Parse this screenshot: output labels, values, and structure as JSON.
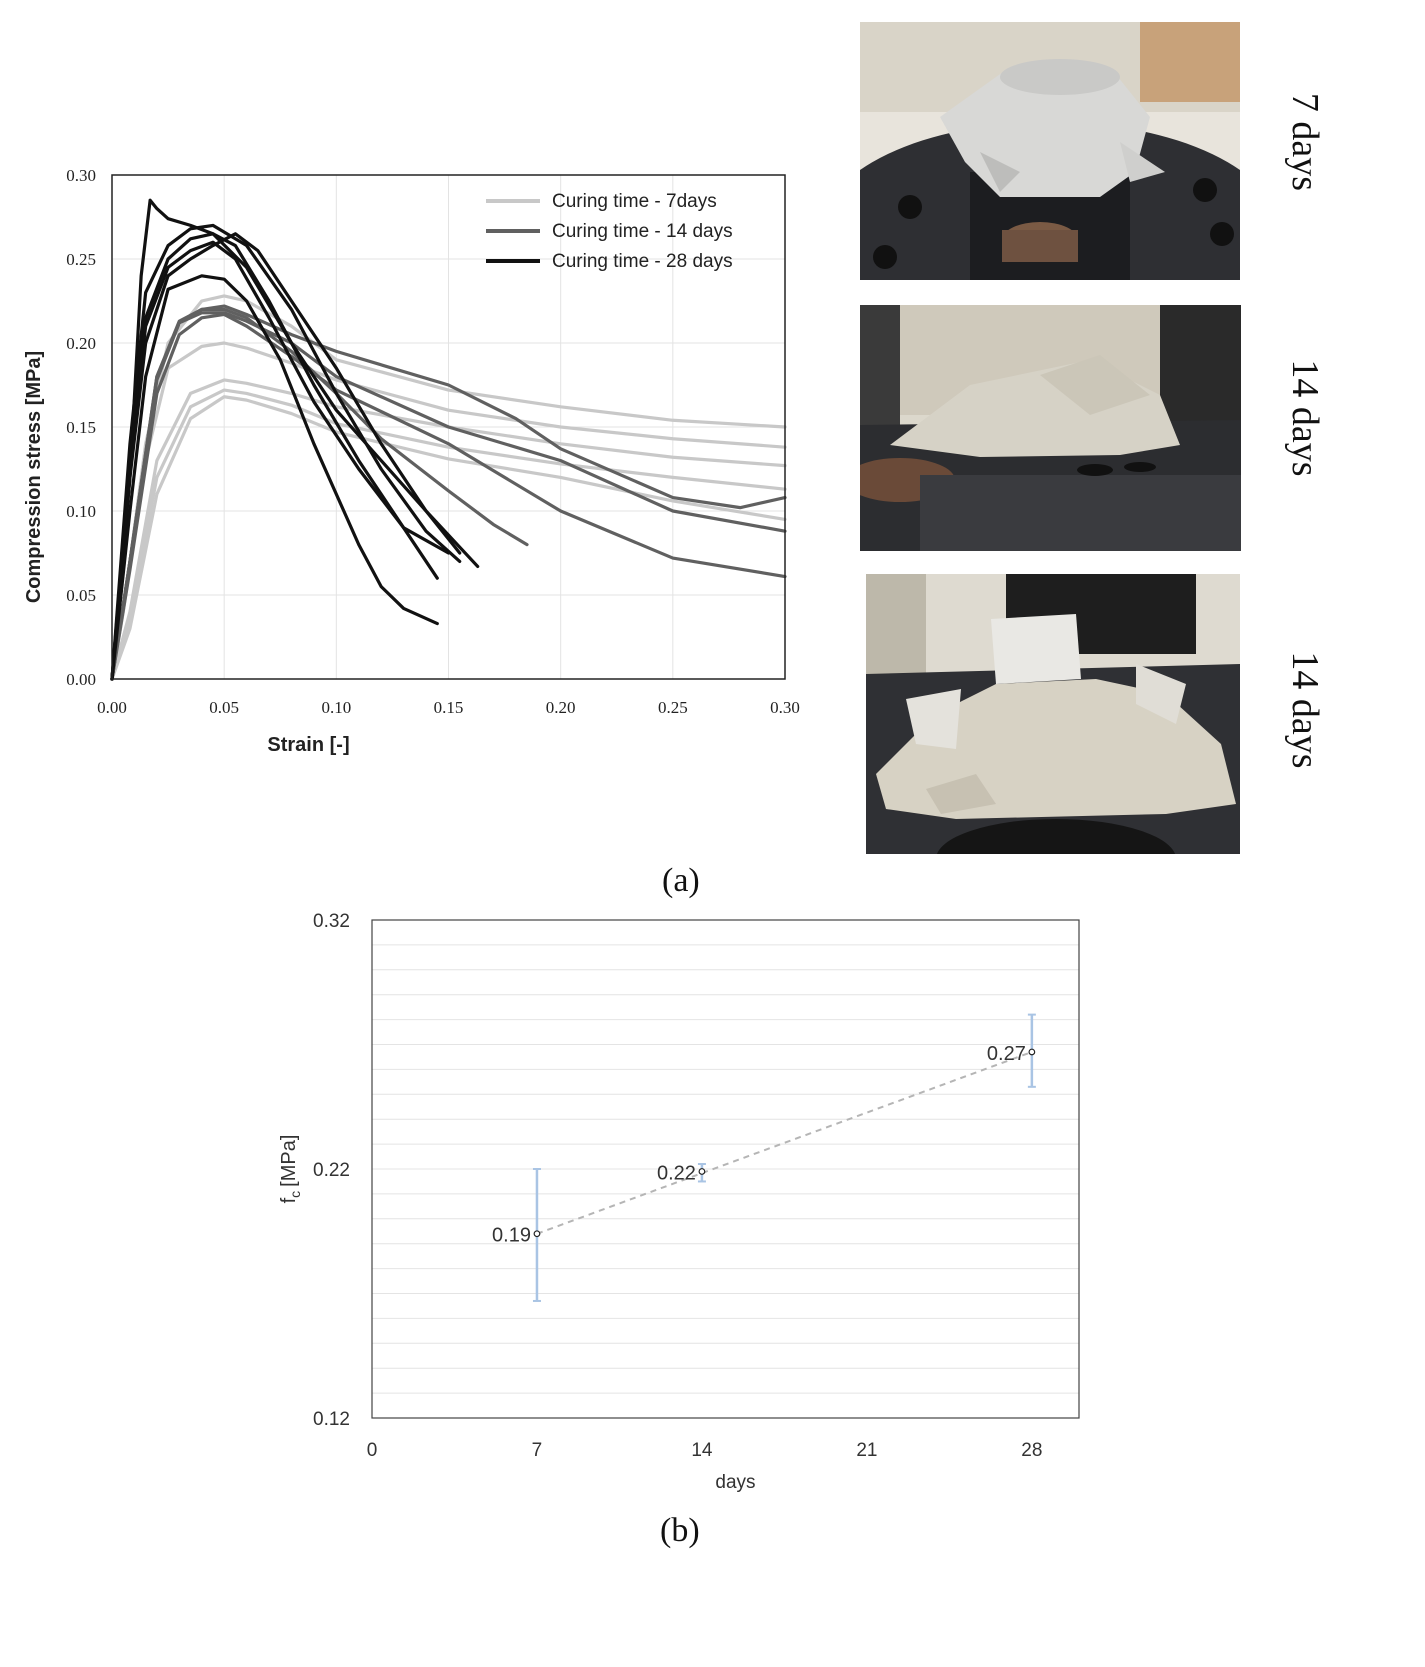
{
  "panel_a_label": "(a)",
  "panel_b_label": "(b)",
  "photos": [
    {
      "label": "7 days",
      "icon": "photo-crushed-specimen-7-days"
    },
    {
      "label": "14 days",
      "icon": "photo-crushed-specimen-14-days"
    },
    {
      "label": "14 days",
      "icon": "photo-crushed-specimen-14-days-b"
    }
  ],
  "chart_data": [
    {
      "type": "line",
      "title": "",
      "xlabel": "Strain [-]",
      "ylabel": "Compression stress [MPa]",
      "xlim": [
        0,
        0.3
      ],
      "ylim": [
        0,
        0.3
      ],
      "xticks": [
        "0.00",
        "0.05",
        "0.10",
        "0.15",
        "0.20",
        "0.25",
        "0.30"
      ],
      "yticks": [
        "0.00",
        "0.05",
        "0.10",
        "0.15",
        "0.20",
        "0.25",
        "0.30"
      ],
      "grid": true,
      "legend_position": "top-right",
      "legend": [
        {
          "label": "Curing time - 7days",
          "color": "#c8c8c8"
        },
        {
          "label": "Curing time - 14 days",
          "color": "#606060"
        },
        {
          "label": "Curing time - 28 days",
          "color": "#111111"
        }
      ],
      "series": [
        {
          "group": 0,
          "color": "#c8c8c8",
          "x": [
            0,
            0.005,
            0.015,
            0.025,
            0.04,
            0.05,
            0.06,
            0.08,
            0.1,
            0.15,
            0.2,
            0.25,
            0.3
          ],
          "y": [
            0,
            0.04,
            0.14,
            0.2,
            0.225,
            0.228,
            0.225,
            0.21,
            0.19,
            0.172,
            0.162,
            0.154,
            0.15
          ]
        },
        {
          "group": 0,
          "color": "#c8c8c8",
          "x": [
            0,
            0.005,
            0.015,
            0.025,
            0.04,
            0.05,
            0.06,
            0.08,
            0.1,
            0.15,
            0.2,
            0.25,
            0.3
          ],
          "y": [
            0,
            0.04,
            0.13,
            0.185,
            0.198,
            0.2,
            0.197,
            0.188,
            0.178,
            0.16,
            0.15,
            0.143,
            0.138
          ]
        },
        {
          "group": 0,
          "color": "#c8c8c8",
          "x": [
            0,
            0.008,
            0.02,
            0.035,
            0.05,
            0.06,
            0.08,
            0.1,
            0.15,
            0.2,
            0.25,
            0.3
          ],
          "y": [
            0,
            0.04,
            0.13,
            0.17,
            0.178,
            0.176,
            0.17,
            0.162,
            0.15,
            0.14,
            0.132,
            0.127
          ]
        },
        {
          "group": 0,
          "color": "#c8c8c8",
          "x": [
            0,
            0.008,
            0.02,
            0.035,
            0.05,
            0.06,
            0.08,
            0.1,
            0.15,
            0.2,
            0.25,
            0.3
          ],
          "y": [
            0,
            0.035,
            0.12,
            0.162,
            0.172,
            0.17,
            0.163,
            0.152,
            0.138,
            0.128,
            0.12,
            0.113
          ]
        },
        {
          "group": 0,
          "color": "#c8c8c8",
          "x": [
            0,
            0.008,
            0.02,
            0.035,
            0.05,
            0.06,
            0.08,
            0.1,
            0.15,
            0.2,
            0.25,
            0.3
          ],
          "y": [
            0,
            0.03,
            0.11,
            0.155,
            0.168,
            0.166,
            0.158,
            0.147,
            0.131,
            0.12,
            0.106,
            0.095
          ]
        },
        {
          "group": 1,
          "color": "#606060",
          "x": [
            0,
            0.008,
            0.02,
            0.03,
            0.04,
            0.05,
            0.06,
            0.08,
            0.1,
            0.15,
            0.18,
            0.2,
            0.25,
            0.28,
            0.3
          ],
          "y": [
            0,
            0.07,
            0.18,
            0.212,
            0.22,
            0.222,
            0.217,
            0.205,
            0.195,
            0.175,
            0.155,
            0.137,
            0.108,
            0.102,
            0.108
          ]
        },
        {
          "group": 1,
          "color": "#606060",
          "x": [
            0,
            0.008,
            0.02,
            0.03,
            0.04,
            0.05,
            0.06,
            0.08,
            0.1,
            0.15,
            0.2,
            0.25,
            0.3
          ],
          "y": [
            0,
            0.07,
            0.178,
            0.212,
            0.218,
            0.218,
            0.213,
            0.2,
            0.18,
            0.15,
            0.13,
            0.1,
            0.088
          ]
        },
        {
          "group": 1,
          "color": "#606060",
          "x": [
            0,
            0.008,
            0.02,
            0.03,
            0.04,
            0.05,
            0.06,
            0.08,
            0.1,
            0.15,
            0.2,
            0.25,
            0.3
          ],
          "y": [
            0,
            0.065,
            0.17,
            0.205,
            0.215,
            0.217,
            0.21,
            0.192,
            0.172,
            0.14,
            0.1,
            0.072,
            0.061
          ]
        },
        {
          "group": 1,
          "color": "#606060",
          "x": [
            0,
            0.008,
            0.02,
            0.03,
            0.04,
            0.05,
            0.06,
            0.08,
            0.1,
            0.12,
            0.15,
            0.17,
            0.185
          ],
          "y": [
            0,
            0.07,
            0.18,
            0.213,
            0.22,
            0.22,
            0.215,
            0.195,
            0.17,
            0.143,
            0.112,
            0.092,
            0.08
          ]
        },
        {
          "group": 2,
          "color": "#111111",
          "x": [
            0,
            0.008,
            0.013,
            0.017,
            0.02,
            0.025,
            0.035,
            0.045,
            0.06,
            0.08,
            0.1,
            0.12,
            0.14,
            0.163
          ],
          "y": [
            0,
            0.12,
            0.24,
            0.285,
            0.28,
            0.274,
            0.27,
            0.265,
            0.245,
            0.2,
            0.16,
            0.13,
            0.1,
            0.067
          ]
        },
        {
          "group": 2,
          "color": "#111111",
          "x": [
            0,
            0.008,
            0.015,
            0.025,
            0.035,
            0.045,
            0.06,
            0.08,
            0.1,
            0.12,
            0.14,
            0.155
          ],
          "y": [
            0,
            0.14,
            0.23,
            0.258,
            0.268,
            0.27,
            0.258,
            0.22,
            0.17,
            0.125,
            0.088,
            0.07
          ]
        },
        {
          "group": 2,
          "color": "#111111",
          "x": [
            0,
            0.008,
            0.015,
            0.025,
            0.035,
            0.045,
            0.055,
            0.07,
            0.09,
            0.11,
            0.13,
            0.145
          ],
          "y": [
            0,
            0.13,
            0.215,
            0.25,
            0.262,
            0.265,
            0.258,
            0.225,
            0.175,
            0.13,
            0.09,
            0.06
          ]
        },
        {
          "group": 2,
          "color": "#111111",
          "x": [
            0,
            0.008,
            0.015,
            0.025,
            0.035,
            0.045,
            0.055,
            0.07,
            0.09,
            0.11,
            0.13,
            0.15
          ],
          "y": [
            0,
            0.13,
            0.21,
            0.245,
            0.255,
            0.26,
            0.25,
            0.215,
            0.165,
            0.125,
            0.09,
            0.075
          ]
        },
        {
          "group": 2,
          "color": "#111111",
          "x": [
            0,
            0.008,
            0.015,
            0.025,
            0.035,
            0.045,
            0.055,
            0.065,
            0.08,
            0.1,
            0.12,
            0.14,
            0.155
          ],
          "y": [
            0,
            0.12,
            0.2,
            0.24,
            0.25,
            0.258,
            0.265,
            0.255,
            0.225,
            0.185,
            0.14,
            0.1,
            0.075
          ]
        },
        {
          "group": 2,
          "color": "#111111",
          "x": [
            0,
            0.008,
            0.015,
            0.025,
            0.04,
            0.05,
            0.06,
            0.075,
            0.09,
            0.11,
            0.12,
            0.13,
            0.145
          ],
          "y": [
            0,
            0.1,
            0.18,
            0.232,
            0.24,
            0.238,
            0.225,
            0.19,
            0.14,
            0.08,
            0.055,
            0.042,
            0.033
          ]
        }
      ]
    },
    {
      "type": "scatter",
      "title": "",
      "xlabel": "days",
      "ylabel_main": "f",
      "ylabel_sub": "c",
      "ylabel_unit": "[MPa]",
      "xlim": [
        0,
        30
      ],
      "ylim": [
        0.12,
        0.32
      ],
      "xticks": [
        "0",
        "7",
        "14",
        "21",
        "28"
      ],
      "yticks": [
        "0.12",
        "0.22",
        "0.32"
      ],
      "grid": true,
      "trendline": "linear, dashed",
      "points": [
        {
          "x": 7,
          "y": 0.194,
          "label": "0.19",
          "err_low": 0.167,
          "err_high": 0.22
        },
        {
          "x": 14,
          "y": 0.219,
          "label": "0.22",
          "err_low": 0.215,
          "err_high": 0.222
        },
        {
          "x": 28,
          "y": 0.267,
          "label": "0.27",
          "err_low": 0.253,
          "err_high": 0.282
        }
      ],
      "colors": {
        "errorbar": "#a9c4e4",
        "trendline": "#b5b5b5",
        "grid": "#e4e4e4"
      }
    }
  ]
}
